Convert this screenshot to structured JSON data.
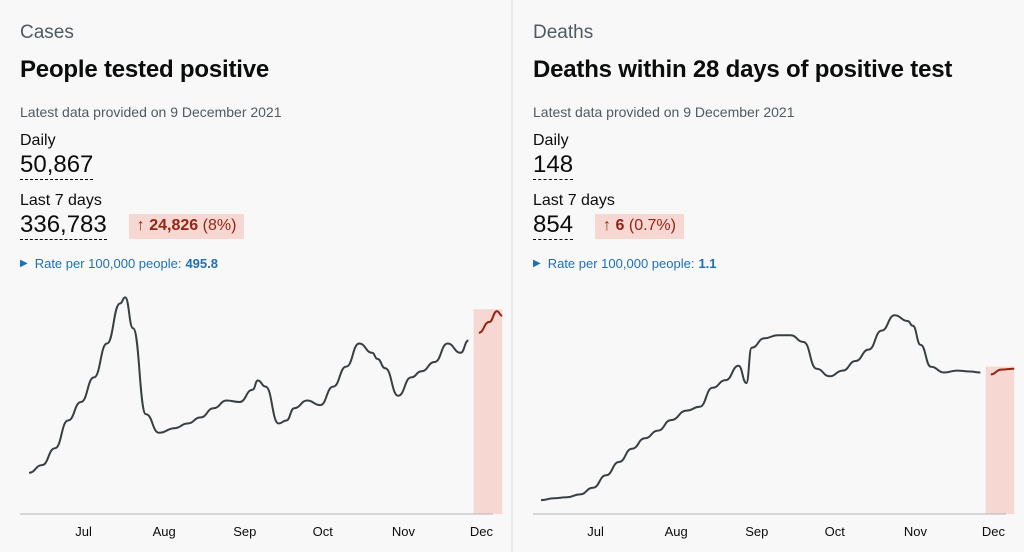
{
  "cards": [
    {
      "category": "Cases",
      "title": "People tested positive",
      "latest": "Latest data provided on 9 December 2021",
      "daily_label": "Daily",
      "daily_value": "50,867",
      "week_label": "Last 7 days",
      "week_value": "336,783",
      "change_arrow": "↑",
      "change_value": "24,826",
      "change_pct": "(8%)",
      "rate_label": "Rate per 100,000 people:",
      "rate_value": "495.8"
    },
    {
      "category": "Deaths",
      "title": "Deaths within 28 days of positive test",
      "latest": "Latest data provided on 9 December 2021",
      "daily_label": "Daily",
      "daily_value": "148",
      "week_label": "Last 7 days",
      "week_value": "854",
      "change_arrow": "↑",
      "change_value": "6",
      "change_pct": "(0.7%)",
      "rate_label": "Rate per 100,000 people:",
      "rate_value": "1.1"
    }
  ],
  "colors": {
    "line": "#383f43",
    "recent_line": "#942514",
    "recent_fill": "#f6d7d2",
    "link": "#1d70b8"
  },
  "chart_data": [
    {
      "type": "line",
      "x_ticks": [
        "Jul",
        "Aug",
        "Sep",
        "Oct",
        "Nov",
        "Dec"
      ],
      "x": [
        "2021-06-10",
        "2021-06-15",
        "2021-06-20",
        "2021-06-25",
        "2021-06-30",
        "2021-07-05",
        "2021-07-10",
        "2021-07-15",
        "2021-07-17",
        "2021-07-20",
        "2021-07-25",
        "2021-07-30",
        "2021-08-05",
        "2021-08-10",
        "2021-08-15",
        "2021-08-20",
        "2021-08-25",
        "2021-08-30",
        "2021-09-04",
        "2021-09-06",
        "2021-09-09",
        "2021-09-14",
        "2021-09-17",
        "2021-09-20",
        "2021-09-25",
        "2021-09-30",
        "2021-10-05",
        "2021-10-10",
        "2021-10-15",
        "2021-10-20",
        "2021-10-22",
        "2021-10-25",
        "2021-10-30",
        "2021-11-04",
        "2021-11-08",
        "2021-11-13",
        "2021-11-18",
        "2021-11-23",
        "2021-11-26",
        "2021-11-30",
        "2021-12-04",
        "2021-12-07",
        "2021-12-09"
      ],
      "values": [
        3000,
        5500,
        11000,
        20000,
        26000,
        34000,
        45000,
        58000,
        60000,
        50000,
        22000,
        16000,
        17500,
        19000,
        21000,
        24000,
        26500,
        26000,
        30000,
        33000,
        31000,
        19000,
        20000,
        24000,
        26500,
        25000,
        31000,
        37500,
        45000,
        42000,
        40000,
        37000,
        28000,
        34000,
        36000,
        39000,
        45000,
        42000,
        46000,
        48500,
        52000,
        55500,
        54000
      ],
      "highlight_from": "2021-11-28",
      "ylim": [
        0,
        65000
      ]
    },
    {
      "type": "line",
      "x_ticks": [
        "Jul",
        "Aug",
        "Sep",
        "Oct",
        "Nov",
        "Dec"
      ],
      "x": [
        "2021-06-10",
        "2021-06-15",
        "2021-06-20",
        "2021-06-25",
        "2021-06-30",
        "2021-07-05",
        "2021-07-10",
        "2021-07-15",
        "2021-07-20",
        "2021-07-25",
        "2021-07-30",
        "2021-08-05",
        "2021-08-10",
        "2021-08-15",
        "2021-08-20",
        "2021-08-25",
        "2021-08-28",
        "2021-08-30",
        "2021-09-04",
        "2021-09-09",
        "2021-09-14",
        "2021-09-19",
        "2021-09-24",
        "2021-09-29",
        "2021-10-04",
        "2021-10-09",
        "2021-10-14",
        "2021-10-19",
        "2021-10-24",
        "2021-10-29",
        "2021-10-31",
        "2021-11-03",
        "2021-11-07",
        "2021-11-12",
        "2021-11-17",
        "2021-11-22",
        "2021-11-26",
        "2021-11-30",
        "2021-12-04",
        "2021-12-09"
      ],
      "values": [
        2,
        4,
        5,
        8,
        15,
        28,
        42,
        56,
        67,
        75,
        86,
        96,
        100,
        120,
        128,
        143,
        125,
        162,
        172,
        175,
        175,
        168,
        140,
        132,
        138,
        148,
        160,
        180,
        196,
        190,
        185,
        165,
        142,
        136,
        138,
        137,
        136,
        134,
        139,
        140
      ],
      "highlight_from": "2021-11-28",
      "ylim": [
        0,
        210
      ]
    }
  ]
}
